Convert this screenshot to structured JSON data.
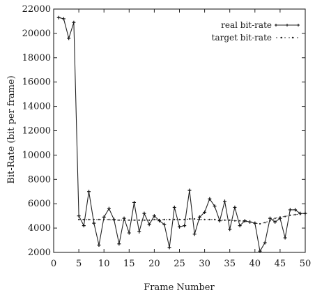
{
  "chart_data": {
    "type": "line",
    "title": "",
    "xlabel": "Frame Number",
    "ylabel": "Bit-Rate (bit per frame)",
    "xlim": [
      0,
      50
    ],
    "ylim": [
      2000,
      22000
    ],
    "xticks": [
      "0",
      "5",
      "10",
      "15",
      "20",
      "25",
      "30",
      "35",
      "40",
      "45",
      "50"
    ],
    "yticks": [
      "2000",
      "4000",
      "6000",
      "8000",
      "10000",
      "12000",
      "14000",
      "16000",
      "18000",
      "20000",
      "22000"
    ],
    "grid": false,
    "legend_position": "top-right",
    "series": [
      {
        "name": "real bit-rate",
        "marker": "plus",
        "line": "solid",
        "x": [
          1,
          2,
          3,
          4,
          5,
          6,
          7,
          8,
          9,
          10,
          11,
          12,
          13,
          14,
          15,
          16,
          17,
          18,
          19,
          20,
          21,
          22,
          23,
          24,
          25,
          26,
          27,
          28,
          29,
          30,
          31,
          32,
          33,
          34,
          35,
          36,
          37,
          38,
          39,
          40,
          41,
          42,
          43,
          44,
          45,
          46,
          47,
          48,
          49,
          50
        ],
        "y": [
          21300,
          21200,
          19600,
          20900,
          5000,
          4200,
          7000,
          4400,
          2600,
          4900,
          5600,
          4700,
          2700,
          4800,
          3600,
          6100,
          3700,
          5200,
          4300,
          5000,
          4600,
          4300,
          2400,
          5700,
          4100,
          4200,
          7100,
          3500,
          4900,
          5300,
          6400,
          5800,
          4600,
          6200,
          3900,
          5700,
          4200,
          4600,
          4500,
          4400,
          2100,
          2800,
          4800,
          4500,
          4800,
          3200,
          5500,
          5500,
          5200,
          5200
        ]
      },
      {
        "name": "target bit-rate",
        "marker": "dot",
        "line": "dotted",
        "x": [
          5,
          6,
          7,
          8,
          9,
          10,
          11,
          12,
          13,
          14,
          15,
          16,
          17,
          18,
          19,
          20,
          21,
          22,
          23,
          24,
          25,
          26,
          27,
          28,
          29,
          30,
          31,
          32,
          33,
          34,
          35,
          36,
          37,
          38,
          39,
          40,
          41,
          42,
          43,
          44,
          45,
          46,
          47,
          48,
          49,
          50
        ],
        "y": [
          4700,
          4700,
          4700,
          4700,
          4700,
          4700,
          4700,
          4650,
          4650,
          4650,
          4650,
          4650,
          4650,
          4650,
          4650,
          4700,
          4700,
          4700,
          4700,
          4700,
          4700,
          4700,
          4750,
          4750,
          4700,
          4700,
          4700,
          4700,
          4650,
          4650,
          4650,
          4600,
          4600,
          4550,
          4500,
          4400,
          4350,
          4450,
          4600,
          4800,
          4900,
          4950,
          5050,
          5100,
          5150,
          5200
        ]
      }
    ]
  }
}
